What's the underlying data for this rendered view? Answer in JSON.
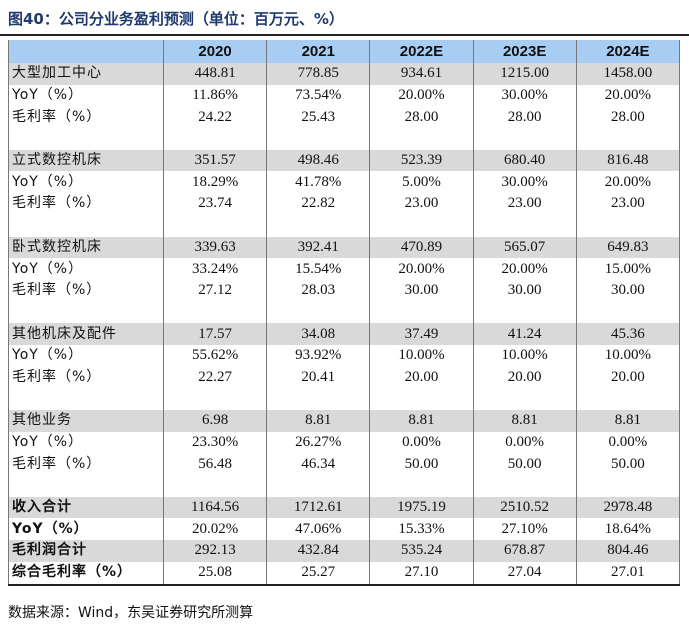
{
  "title": "图40：公司分业务盈利预测（单位：百万元、%）",
  "headers": [
    "",
    "2020",
    "2021",
    "2022E",
    "2023E",
    "2024E"
  ],
  "rows": [
    {
      "label": "大型加工中心",
      "values": [
        "448.81",
        "778.85",
        "934.61",
        "1215.00",
        "1458.00"
      ],
      "gray": true
    },
    {
      "label": "YoY（%）",
      "values": [
        "11.86%",
        "73.54%",
        "20.00%",
        "30.00%",
        "20.00%"
      ]
    },
    {
      "label": "毛利率（%）",
      "values": [
        "24.22",
        "25.43",
        "28.00",
        "28.00",
        "28.00"
      ]
    },
    {
      "label": "",
      "values": [
        "",
        "",
        "",
        "",
        ""
      ]
    },
    {
      "label": "立式数控机床",
      "values": [
        "351.57",
        "498.46",
        "523.39",
        "680.40",
        "816.48"
      ],
      "gray": true
    },
    {
      "label": "YoY（%）",
      "values": [
        "18.29%",
        "41.78%",
        "5.00%",
        "30.00%",
        "20.00%"
      ]
    },
    {
      "label": "毛利率（%）",
      "values": [
        "23.74",
        "22.82",
        "23.00",
        "23.00",
        "23.00"
      ]
    },
    {
      "label": "",
      "values": [
        "",
        "",
        "",
        "",
        ""
      ]
    },
    {
      "label": "卧式数控机床",
      "values": [
        "339.63",
        "392.41",
        "470.89",
        "565.07",
        "649.83"
      ],
      "gray": true
    },
    {
      "label": "YoY（%）",
      "values": [
        "33.24%",
        "15.54%",
        "20.00%",
        "20.00%",
        "15.00%"
      ]
    },
    {
      "label": "毛利率（%）",
      "values": [
        "27.12",
        "28.03",
        "30.00",
        "30.00",
        "30.00"
      ]
    },
    {
      "label": "",
      "values": [
        "",
        "",
        "",
        "",
        ""
      ]
    },
    {
      "label": "其他机床及配件",
      "values": [
        "17.57",
        "34.08",
        "37.49",
        "41.24",
        "45.36"
      ],
      "gray": true
    },
    {
      "label": "YoY（%）",
      "values": [
        "55.62%",
        "93.92%",
        "10.00%",
        "10.00%",
        "10.00%"
      ]
    },
    {
      "label": "毛利率（%）",
      "values": [
        "22.27",
        "20.41",
        "20.00",
        "20.00",
        "20.00"
      ]
    },
    {
      "label": "",
      "values": [
        "",
        "",
        "",
        "",
        ""
      ]
    },
    {
      "label": "其他业务",
      "values": [
        "6.98",
        "8.81",
        "8.81",
        "8.81",
        "8.81"
      ],
      "gray": true
    },
    {
      "label": "YoY（%）",
      "values": [
        "23.30%",
        "26.27%",
        "0.00%",
        "0.00%",
        "0.00%"
      ]
    },
    {
      "label": "毛利率（%）",
      "values": [
        "56.48",
        "46.34",
        "50.00",
        "50.00",
        "50.00"
      ]
    },
    {
      "label": "",
      "values": [
        "",
        "",
        "",
        "",
        ""
      ]
    },
    {
      "label": "收入合计",
      "values": [
        "1164.56",
        "1712.61",
        "1975.19",
        "2510.52",
        "2978.48"
      ],
      "gray": true,
      "bold": true
    },
    {
      "label": "YoY（%）",
      "values": [
        "20.02%",
        "47.06%",
        "15.33%",
        "27.10%",
        "18.64%"
      ],
      "bold": true
    },
    {
      "label": "毛利润合计",
      "values": [
        "292.13",
        "432.84",
        "535.24",
        "678.87",
        "804.46"
      ],
      "gray": true,
      "bold": true
    },
    {
      "label": "综合毛利率（%）",
      "values": [
        "25.08",
        "25.27",
        "27.10",
        "27.04",
        "27.01"
      ],
      "bold": true
    }
  ],
  "source": "数据来源：Wind，东吴证券研究所测算"
}
